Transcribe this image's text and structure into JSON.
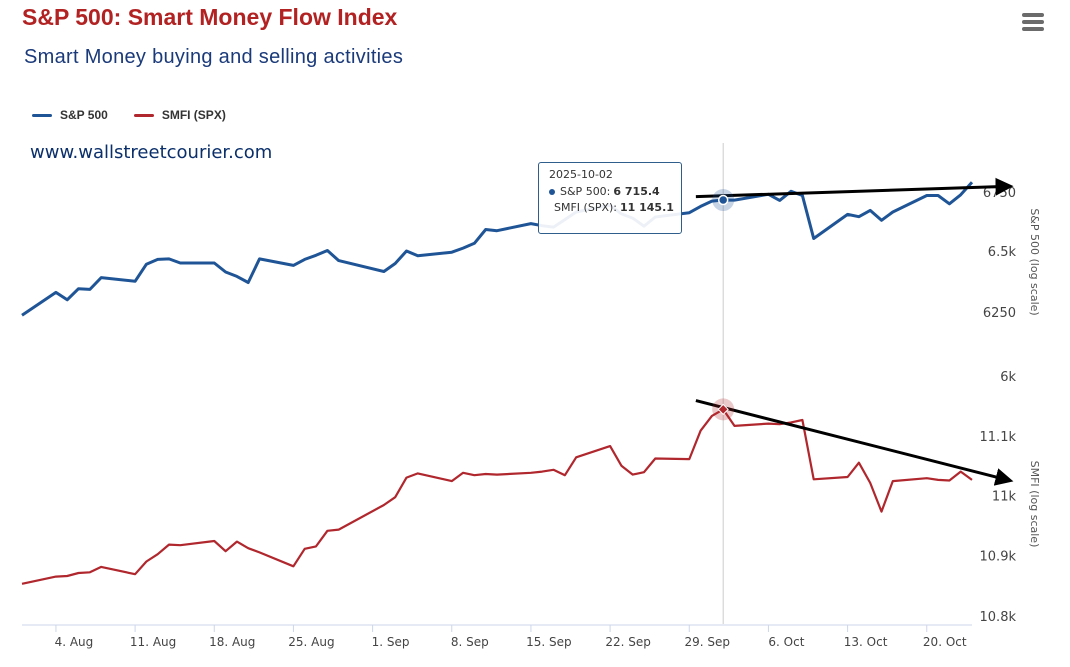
{
  "header": {
    "title": "S&P 500: Smart Money Flow Index",
    "subtitle": "Smart Money buying and selling activities",
    "watermark": "www.wallstreetcourier.com"
  },
  "legend": [
    {
      "label": "S&P 500",
      "color": "#1f5596"
    },
    {
      "label": "SMFI (SPX)",
      "color": "#b0272d"
    }
  ],
  "tooltip": {
    "date": "2025-10-02",
    "rows": [
      {
        "label": "S&P 500:",
        "value": "6 715.4",
        "color": "#1f5596"
      },
      {
        "label": "SMFI (SPX):",
        "value": "11 145.1",
        "color": "#b0272d"
      }
    ]
  },
  "chart_data": {
    "type": "line",
    "x": [
      "2025-08-01",
      "2025-08-04",
      "2025-08-05",
      "2025-08-06",
      "2025-08-07",
      "2025-08-08",
      "2025-08-11",
      "2025-08-12",
      "2025-08-13",
      "2025-08-14",
      "2025-08-15",
      "2025-08-18",
      "2025-08-19",
      "2025-08-20",
      "2025-08-21",
      "2025-08-22",
      "2025-08-25",
      "2025-08-26",
      "2025-08-27",
      "2025-08-28",
      "2025-08-29",
      "2025-09-02",
      "2025-09-03",
      "2025-09-04",
      "2025-09-05",
      "2025-09-08",
      "2025-09-09",
      "2025-09-10",
      "2025-09-11",
      "2025-09-12",
      "2025-09-15",
      "2025-09-16",
      "2025-09-17",
      "2025-09-18",
      "2025-09-19",
      "2025-09-22",
      "2025-09-23",
      "2025-09-24",
      "2025-09-25",
      "2025-09-26",
      "2025-09-29",
      "2025-09-30",
      "2025-10-01",
      "2025-10-02",
      "2025-10-03",
      "2025-10-06",
      "2025-10-07",
      "2025-10-08",
      "2025-10-09",
      "2025-10-10",
      "2025-10-13",
      "2025-10-14",
      "2025-10-15",
      "2025-10-16",
      "2025-10-17",
      "2025-10-20",
      "2025-10-21",
      "2025-10-22",
      "2025-10-23",
      "2025-10-24"
    ],
    "x_ticks": [
      {
        "date": "2025-08-04",
        "label": "4. Aug"
      },
      {
        "date": "2025-08-11",
        "label": "11. Aug"
      },
      {
        "date": "2025-08-18",
        "label": "18. Aug"
      },
      {
        "date": "2025-08-25",
        "label": "25. Aug"
      },
      {
        "date": "2025-09-01",
        "label": "1. Sep"
      },
      {
        "date": "2025-09-08",
        "label": "8. Sep"
      },
      {
        "date": "2025-09-15",
        "label": "15. Sep"
      },
      {
        "date": "2025-09-22",
        "label": "22. Sep"
      },
      {
        "date": "2025-09-29",
        "label": "29. Sep"
      },
      {
        "date": "2025-10-06",
        "label": "6. Oct"
      },
      {
        "date": "2025-10-13",
        "label": "13. Oct"
      },
      {
        "date": "2025-10-20",
        "label": "20. Oct"
      }
    ],
    "series": [
      {
        "name": "S&P 500",
        "color": "#1f5596",
        "axis": "upper",
        "values": [
          6238,
          6330,
          6300,
          6345,
          6342,
          6390,
          6375,
          6445,
          6465,
          6467,
          6450,
          6450,
          6413,
          6395,
          6370,
          6467,
          6440,
          6465,
          6482,
          6502,
          6460,
          6415,
          6448,
          6500,
          6480,
          6495,
          6512,
          6532,
          6590,
          6585,
          6615,
          6606,
          6600,
          6632,
          6664,
          6693,
          6656,
          6638,
          6604,
          6643,
          6661,
          6688,
          6711,
          6715.4,
          6715,
          6740,
          6714,
          6753,
          6735,
          6552,
          6654,
          6644,
          6671,
          6629,
          6664,
          6735,
          6735,
          6699,
          6738,
          6792
        ]
      },
      {
        "name": "SMFI (SPX)",
        "color": "#b0272d",
        "axis": "lower",
        "values": [
          10853,
          10865,
          10866,
          10871,
          10872,
          10881,
          10869,
          10890,
          10902,
          10918,
          10917,
          10924,
          10907,
          10923,
          10912,
          10905,
          10882,
          10911,
          10915,
          10941,
          10943,
          10984,
          10997,
          11030,
          11037,
          11024,
          11038,
          11034,
          11036,
          11035,
          11038,
          11040,
          11043,
          11034,
          11064,
          11083,
          11050,
          11035,
          11039,
          11062,
          11061,
          11109,
          11134,
          11145.1,
          11117,
          11121,
          11120,
          11123,
          11127,
          11027,
          11031,
          11055,
          11021,
          10973,
          11024,
          11029,
          11026,
          11025,
          11040,
          11026
        ]
      }
    ],
    "y_axes": [
      {
        "id": "upper",
        "title": "S&P 500 (log scale)",
        "scale": "log",
        "ticks": [
          {
            "v": 6000,
            "label": "6k"
          },
          {
            "v": 6250,
            "label": "6250"
          },
          {
            "v": 6500,
            "label": "6.5k"
          },
          {
            "v": 6750,
            "label": "6750"
          }
        ],
        "range": [
          6000,
          6750
        ]
      },
      {
        "id": "lower",
        "title": "SMFI (log scale)",
        "scale": "log",
        "ticks": [
          {
            "v": 10800,
            "label": "10.8k"
          },
          {
            "v": 10900,
            "label": "10.9k"
          },
          {
            "v": 11000,
            "label": "11k"
          },
          {
            "v": 11100,
            "label": "11.1k"
          }
        ],
        "range": [
          10800,
          11100
        ]
      }
    ],
    "trendlines": [
      {
        "series": "S&P 500",
        "from": {
          "date": "2025-10-01",
          "value": 6730
        },
        "to": {
          "date": "2025-10-27",
          "value": 6775
        }
      },
      {
        "series": "SMFI (SPX)",
        "from": {
          "date": "2025-10-01",
          "value": 11160
        },
        "to": {
          "date": "2025-10-27",
          "value": 11025
        }
      }
    ],
    "highlight": {
      "date": "2025-10-02"
    }
  }
}
